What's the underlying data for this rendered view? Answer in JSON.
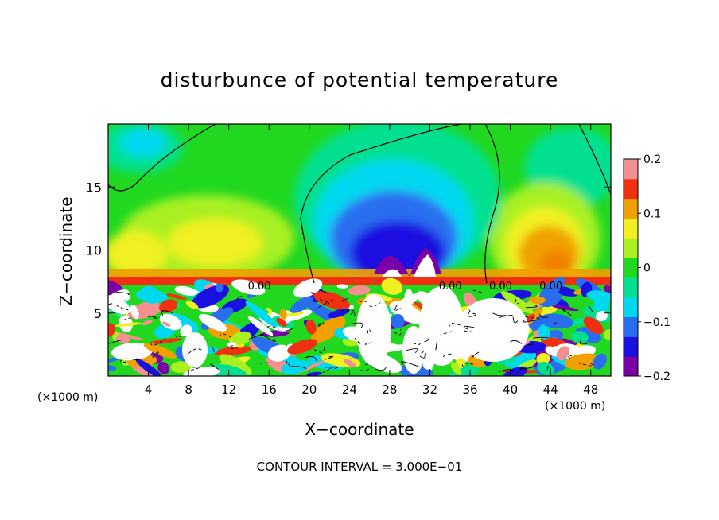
{
  "chart_data": {
    "type": "heatmap",
    "title": "disturbunce of potential temperature",
    "xlabel": "X−coordinate",
    "ylabel": "Z−coordinate",
    "x_unit": "(×1000 m)",
    "y_unit": "(×1000 m)",
    "xlim": [
      0,
      50
    ],
    "ylim": [
      0,
      20
    ],
    "x_ticks": [
      4,
      8,
      12,
      16,
      20,
      24,
      28,
      32,
      36,
      40,
      44,
      48
    ],
    "y_ticks": [
      5,
      10,
      15
    ],
    "colorbar": {
      "range": [
        -0.2,
        0.2
      ],
      "tick_values": [
        0.2,
        0.1,
        0,
        -0.1,
        -0.2
      ],
      "tick_labels": [
        "0.2",
        "0.1",
        "0",
        "−0.1",
        "−0.2"
      ]
    },
    "contour_labels": [
      "0.00",
      "0.00",
      "0.00",
      "0.00"
    ],
    "contour_interval": "CONTOUR INTERVAL = 3.000E−01",
    "colors": {
      "palette": [
        "#7a00a8",
        "#1a10e0",
        "#2a6ef0",
        "#00d8f0",
        "#00e090",
        "#20d820",
        "#a8f020",
        "#f0f020",
        "#f0a000",
        "#f03010",
        "#f49090"
      ]
    }
  }
}
